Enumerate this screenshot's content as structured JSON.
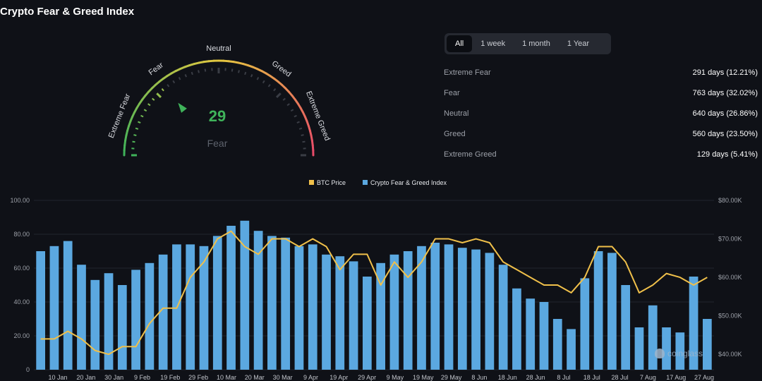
{
  "title": "Crypto Fear & Greed Index",
  "gauge": {
    "value": "29",
    "level": 29,
    "classification": "Fear",
    "zone_labels": [
      "Extreme Fear",
      "Fear",
      "Neutral",
      "Greed",
      "Extreme Greed"
    ],
    "colors": {
      "low": "#3fb35a",
      "mid": "#e6c840",
      "high": "#e8476a",
      "value": "#3fb35a"
    }
  },
  "range_tabs": [
    "All",
    "1 week",
    "1 month",
    "1 Year"
  ],
  "active_range": "All",
  "stats": [
    {
      "name": "Extreme Fear",
      "value": "291 days (12.21%)"
    },
    {
      "name": "Fear",
      "value": "763 days (32.02%)"
    },
    {
      "name": "Neutral",
      "value": "640 days (26.86%)"
    },
    {
      "name": "Greed",
      "value": "560 days (23.50%)"
    },
    {
      "name": "Extreme Greed",
      "value": "129 days (5.41%)"
    }
  ],
  "watermark": "coinglass",
  "chart_data": {
    "type": "bar",
    "legend_position": "top-center",
    "series": [
      {
        "name": "BTC Price",
        "type": "line",
        "axis": "right",
        "color": "#f0c04a",
        "values": [
          44,
          44,
          46,
          44,
          41,
          40,
          42,
          42,
          48,
          52,
          52,
          60,
          64,
          70,
          72,
          68,
          66,
          70,
          70,
          68,
          70,
          68,
          62,
          66,
          66,
          58,
          64,
          60,
          64,
          70,
          70,
          69,
          70,
          69,
          64,
          62,
          60,
          58,
          58,
          56,
          60,
          68,
          68,
          64,
          56,
          58,
          61,
          60,
          58,
          60
        ]
      },
      {
        "name": "Crypto Fear & Greed Index",
        "type": "bar",
        "axis": "left",
        "color": "#5ba8e0",
        "values": [
          70,
          73,
          76,
          62,
          53,
          57,
          50,
          59,
          63,
          68,
          74,
          74,
          73,
          79,
          85,
          88,
          82,
          79,
          78,
          73,
          74,
          68,
          67,
          64,
          55,
          63,
          68,
          70,
          73,
          75,
          74,
          72,
          71,
          69,
          62,
          48,
          42,
          40,
          30,
          24,
          54,
          70,
          69,
          50,
          25,
          38,
          25,
          22,
          55,
          30
        ]
      }
    ],
    "x_tick_labels": [
      "10 Jan",
      "20 Jan",
      "30 Jan",
      "9 Feb",
      "19 Feb",
      "29 Feb",
      "10 Mar",
      "20 Mar",
      "30 Mar",
      "9 Apr",
      "19 Apr",
      "29 Apr",
      "9 May",
      "19 May",
      "29 May",
      "8 Jun",
      "18 Jun",
      "28 Jun",
      "8 Jul",
      "18 Jul",
      "28 Jul",
      "7 Aug",
      "17 Aug",
      "27 Aug"
    ],
    "y_left": {
      "ticks": [
        "0",
        "20.00",
        "40.00",
        "60.00",
        "80.00",
        "100.00"
      ],
      "range": [
        0,
        100
      ]
    },
    "y_right": {
      "ticks": [
        "$40.00K",
        "$50.00K",
        "$60.00K",
        "$70.00K",
        "$80.00K"
      ],
      "range": [
        36,
        80
      ],
      "unit": "$K"
    },
    "grid": true
  }
}
